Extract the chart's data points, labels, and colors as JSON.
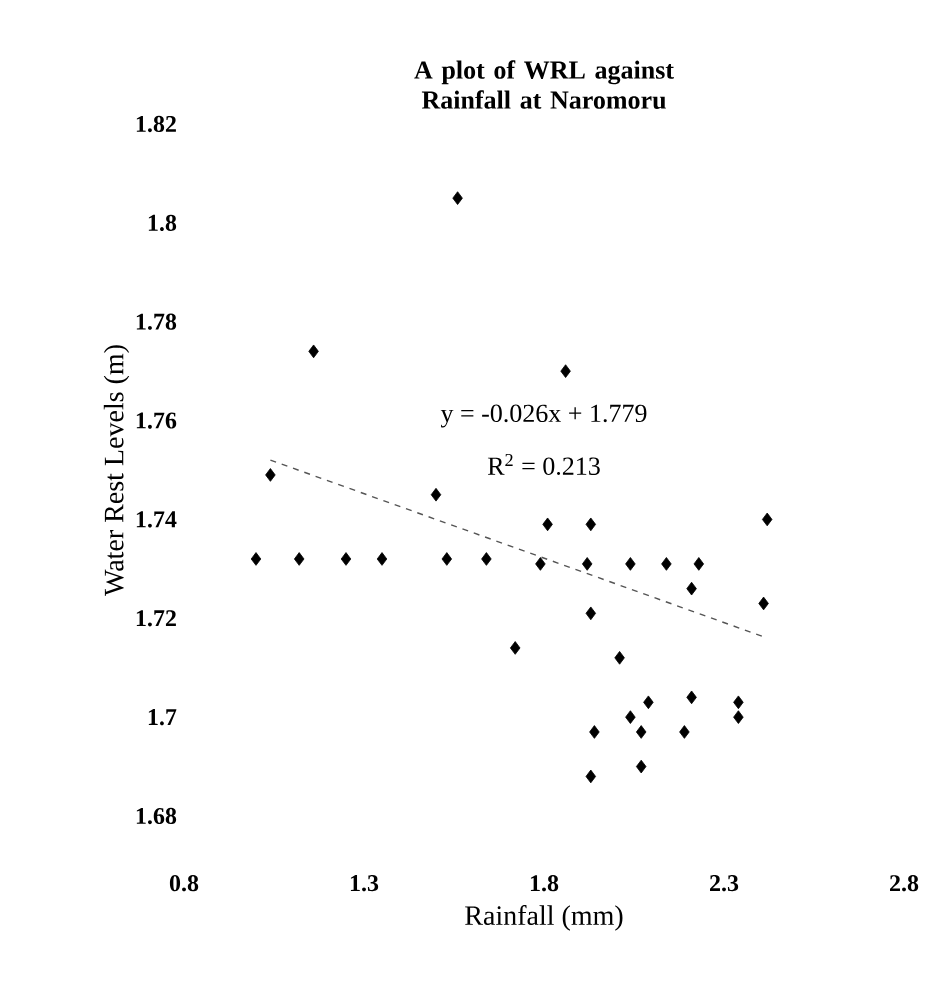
{
  "chart_data": {
    "type": "scatter",
    "title": "A plot of WRL against Rainfall at Naromoru",
    "xlabel": "Rainfall (mm)",
    "ylabel": "Water Rest Levels (m)",
    "xlim": [
      0.8,
      2.8
    ],
    "ylim": [
      1.68,
      1.82
    ],
    "xticks": [
      0.8,
      1.3,
      1.8,
      2.3,
      2.8
    ],
    "yticks": [
      1.68,
      1.7,
      1.72,
      1.74,
      1.76,
      1.78,
      1.8,
      1.82
    ],
    "grid": false,
    "marker": "diamond",
    "series": [
      {
        "color": "#000000",
        "x": [
          1.56,
          1.16,
          1.86,
          1.04,
          1.5,
          2.42,
          1.0,
          1.12,
          1.25,
          1.35,
          1.53,
          1.64,
          1.81,
          1.93,
          1.79,
          1.92,
          2.04,
          2.14,
          2.23,
          2.21,
          2.41,
          1.93,
          1.72,
          2.01,
          2.21,
          2.09,
          2.04,
          2.34,
          2.34,
          1.94,
          2.07,
          2.19,
          2.07,
          1.93
        ],
        "values": [
          1.805,
          1.774,
          1.77,
          1.749,
          1.745,
          1.74,
          1.732,
          1.732,
          1.732,
          1.732,
          1.732,
          1.732,
          1.739,
          1.739,
          1.731,
          1.731,
          1.731,
          1.731,
          1.731,
          1.726,
          1.723,
          1.721,
          1.714,
          1.712,
          1.704,
          1.703,
          1.7,
          1.703,
          1.7,
          1.697,
          1.697,
          1.697,
          1.69,
          1.688
        ]
      },
      {
        "type": "line",
        "color": "#555555",
        "line_style": "dashed",
        "marker": "none",
        "x": [
          1.04,
          2.42
        ],
        "values": [
          1.752,
          1.716
        ]
      }
    ],
    "annotations": [
      "y = -0.026x + 1.779",
      "R$^{2}$ = 0.213"
    ]
  }
}
